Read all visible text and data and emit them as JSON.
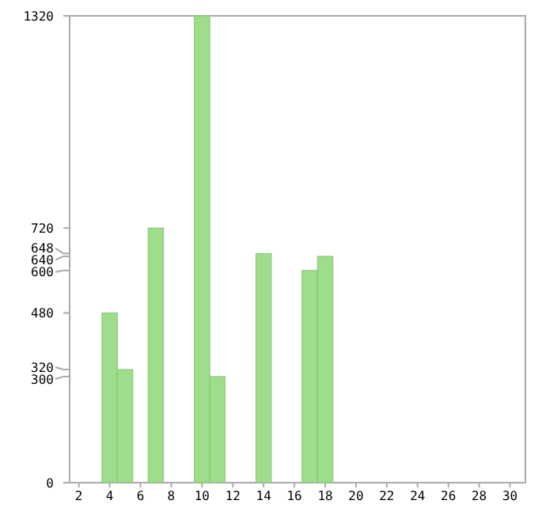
{
  "chart_data": {
    "type": "bar",
    "x": [
      4,
      5,
      7,
      10,
      11,
      14,
      17,
      18
    ],
    "values": [
      480,
      320,
      720,
      1320,
      300,
      648,
      600,
      640
    ],
    "color": "#9ede8a",
    "xlim": [
      1.4,
      31
    ],
    "xticks": [
      2,
      4,
      6,
      8,
      10,
      12,
      14,
      16,
      18,
      20,
      22,
      24,
      26,
      28,
      30
    ],
    "ylim": [
      0,
      1320
    ],
    "yticks": [
      0,
      300,
      320,
      480,
      600,
      640,
      648,
      720,
      1320
    ],
    "grid": false
  }
}
